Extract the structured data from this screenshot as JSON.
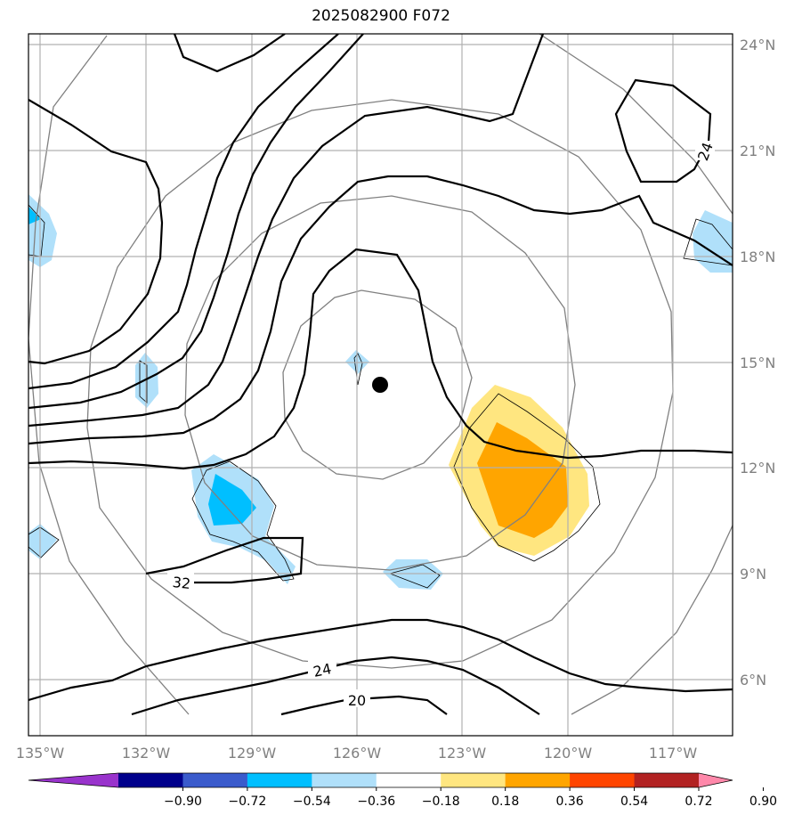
{
  "title": "2025082900 F072",
  "axes": {
    "lon_ticks": [
      "135°W",
      "132°W",
      "129°W",
      "126°W",
      "123°W",
      "120°W",
      "117°W"
    ],
    "lat_ticks": [
      "24°N",
      "21°N",
      "18°N",
      "15°N",
      "12°N",
      "9°N",
      "6°N"
    ]
  },
  "contour_labels": [
    "24",
    "32",
    "24",
    "20"
  ],
  "colorbar": {
    "ticks": [
      "−0.90",
      "−0.72",
      "−0.54",
      "−0.36",
      "−0.18",
      "0.18",
      "0.36",
      "0.54",
      "0.72",
      "0.90"
    ],
    "colors": [
      "#9933cc",
      "#00008b",
      "#3a5bcc",
      "#00bfff",
      "#b0e0fa",
      "#ffffff",
      "#ffe680",
      "#ffa500",
      "#ff4500",
      "#b22222",
      "#ff88aa"
    ]
  },
  "center_marker": "storm-center-dot"
}
